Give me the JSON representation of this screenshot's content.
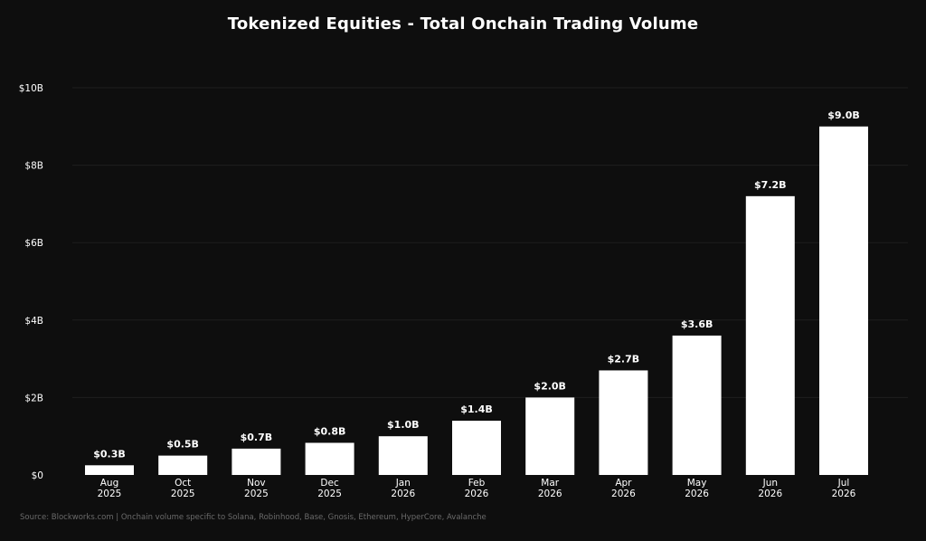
{
  "chart_data": {
    "type": "bar",
    "title": "Tokenized Equities - Total Onchain Trading Volume",
    "xlabel": "",
    "ylabel": "",
    "categories": [
      [
        "Aug",
        "2025"
      ],
      [
        "Oct",
        "2025"
      ],
      [
        "Nov",
        "2025"
      ],
      [
        "Dec",
        "2025"
      ],
      [
        "Jan",
        "2026"
      ],
      [
        "Feb",
        "2026"
      ],
      [
        "Mar",
        "2026"
      ],
      [
        "Apr",
        "2026"
      ],
      [
        "May",
        "2026"
      ],
      [
        "Jun",
        "2026"
      ],
      [
        "Jul",
        "2026"
      ]
    ],
    "values": [
      0.25,
      0.5,
      0.68,
      0.83,
      1.0,
      1.4,
      2.0,
      2.7,
      3.6,
      7.2,
      9.0
    ],
    "value_labels": [
      "$0.3B",
      "$0.5B",
      "$0.7B",
      "$0.8B",
      "$1.0B",
      "$1.4B",
      "$2.0B",
      "$2.7B",
      "$3.6B",
      "$7.2B",
      "$9.0B"
    ],
    "unit": "billion USD",
    "ylim": [
      0,
      10
    ],
    "yticks": [
      0,
      2,
      4,
      6,
      8,
      10
    ],
    "ytick_labels": [
      "$0",
      "$2B",
      "$4B",
      "$6B",
      "$8B",
      "$10B"
    ],
    "grid": true,
    "legend": "none",
    "colors": {
      "background": "#0e0e0e",
      "bar": "#ffffff",
      "text": "#ffffff",
      "grid": "#1f1f1f",
      "source": "#6a6a6a"
    }
  },
  "footer": {
    "source": "Source: Blockworks.com | Onchain volume specific to Solana, Robinhood, Base, Gnosis, Ethereum, HyperCore, Avalanche"
  }
}
